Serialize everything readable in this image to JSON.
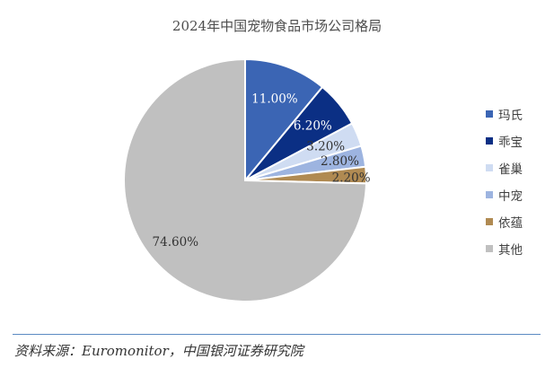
{
  "chart_data": {
    "type": "pie",
    "title": "2024年中国宠物食品市场公司格局",
    "slices": [
      {
        "name": "玛氏",
        "value": 11.0,
        "label": "11.00%",
        "color": "#3b65b4"
      },
      {
        "name": "乖宝",
        "value": 6.2,
        "label": "6.20%",
        "color": "#0b2f84"
      },
      {
        "name": "雀巢",
        "value": 3.2,
        "label": "3.20%",
        "color": "#cfdcf2"
      },
      {
        "name": "中宠",
        "value": 2.8,
        "label": "2.80%",
        "color": "#9db4e0"
      },
      {
        "name": "依蕴",
        "value": 2.2,
        "label": "2.20%",
        "color": "#b08a52"
      },
      {
        "name": "其他",
        "value": 74.6,
        "label": "74.60%",
        "color": "#c0c0c0"
      }
    ],
    "legend_position": "right"
  },
  "footer": {
    "source": "资料来源：Euromonitor，中国银河证券研究院"
  }
}
